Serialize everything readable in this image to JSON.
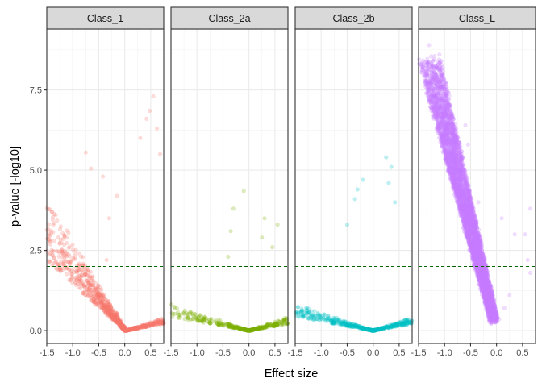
{
  "chart_data": {
    "type": "scatter",
    "subtype": "faceted volcano plot",
    "xlabel": "Effect size",
    "ylabel": "p-value [-log10]",
    "xlim": [
      -1.5,
      0.75
    ],
    "ylim": [
      -0.4,
      9.4
    ],
    "x_ticks": [
      -1.5,
      -1.0,
      -0.5,
      0.0,
      0.5
    ],
    "x_tick_labels": [
      "-1.5",
      "-1.0",
      "-0.5",
      "0.0",
      "0.5"
    ],
    "y_ticks": [
      0,
      2.5,
      5,
      7.5
    ],
    "y_tick_labels": [
      "0.0",
      "2.5",
      "5.0",
      "7.5"
    ],
    "grid": true,
    "threshold_line": {
      "y": 2,
      "style": "dashed",
      "color": "#006400"
    },
    "point_alpha": 0.25,
    "facets": [
      {
        "label": "Class_1",
        "color": "#F8766D",
        "n_points": 2200,
        "shape": "v",
        "vertex_x": 0.02,
        "left_slope": -1.5,
        "right_slope": -0.3,
        "bulk_max_y": 4.5,
        "outliers": [
          {
            "x": -0.75,
            "y": 5.55
          },
          {
            "x": -0.65,
            "y": 5.05
          },
          {
            "x": -0.42,
            "y": 4.8
          },
          {
            "x": 0.55,
            "y": 7.3
          },
          {
            "x": 0.48,
            "y": 6.85
          },
          {
            "x": 0.62,
            "y": 6.3
          },
          {
            "x": 0.42,
            "y": 6.6
          },
          {
            "x": 0.3,
            "y": 6.0
          },
          {
            "x": -0.15,
            "y": 4.2
          },
          {
            "x": -0.3,
            "y": 3.5
          },
          {
            "x": 0.68,
            "y": 5.5
          },
          {
            "x": -0.35,
            "y": 2.2
          }
        ]
      },
      {
        "label": "Class_2a",
        "color": "#7CAE00",
        "n_points": 1500,
        "shape": "v",
        "vertex_x": 0.0,
        "left_slope": -0.3,
        "right_slope": -0.3,
        "bulk_max_y": 3.6,
        "outliers": [
          {
            "x": -0.1,
            "y": 4.35
          },
          {
            "x": -0.3,
            "y": 3.8
          },
          {
            "x": 0.3,
            "y": 3.5
          },
          {
            "x": 0.55,
            "y": 3.3
          },
          {
            "x": -0.35,
            "y": 3.1
          },
          {
            "x": 0.25,
            "y": 2.9
          },
          {
            "x": 0.45,
            "y": 2.6
          },
          {
            "x": -0.4,
            "y": 2.3
          }
        ]
      },
      {
        "label": "Class_2b",
        "color": "#00BFC4",
        "n_points": 1700,
        "shape": "v",
        "vertex_x": 0.0,
        "left_slope": -0.3,
        "right_slope": -0.3,
        "bulk_max_y": 4.0,
        "outliers": [
          {
            "x": 0.25,
            "y": 5.4
          },
          {
            "x": 0.35,
            "y": 5.1
          },
          {
            "x": 0.3,
            "y": 4.6
          },
          {
            "x": -0.2,
            "y": 4.7
          },
          {
            "x": -0.3,
            "y": 4.4
          },
          {
            "x": -0.35,
            "y": 4.1
          },
          {
            "x": 0.42,
            "y": 4.0
          },
          {
            "x": -0.5,
            "y": 3.3
          }
        ]
      },
      {
        "label": "Class_L",
        "color": "#C77CFF",
        "n_points": 4500,
        "shape": "diagonal",
        "x_top": -1.3,
        "y_top": 8.5,
        "x_bottom": -0.05,
        "y_bottom": 0.3,
        "outliers": [
          {
            "x": -1.3,
            "y": 8.9
          },
          {
            "x": -1.1,
            "y": 8.6
          },
          {
            "x": -0.9,
            "y": 6.9
          },
          {
            "x": -0.6,
            "y": 6.4
          },
          {
            "x": -0.55,
            "y": 5.8
          },
          {
            "x": -0.35,
            "y": 4.0
          },
          {
            "x": 0.1,
            "y": 3.5
          },
          {
            "x": 0.55,
            "y": 3.0
          },
          {
            "x": 0.35,
            "y": 3.0
          },
          {
            "x": 0.6,
            "y": 2.2
          },
          {
            "x": 0.65,
            "y": 3.8
          },
          {
            "x": 0.65,
            "y": 1.8
          },
          {
            "x": 0.25,
            "y": 1.1
          },
          {
            "x": 0.15,
            "y": 0.7
          },
          {
            "x": 0.05,
            "y": 0.35
          },
          {
            "x": -0.15,
            "y": 1.2
          }
        ]
      }
    ]
  }
}
